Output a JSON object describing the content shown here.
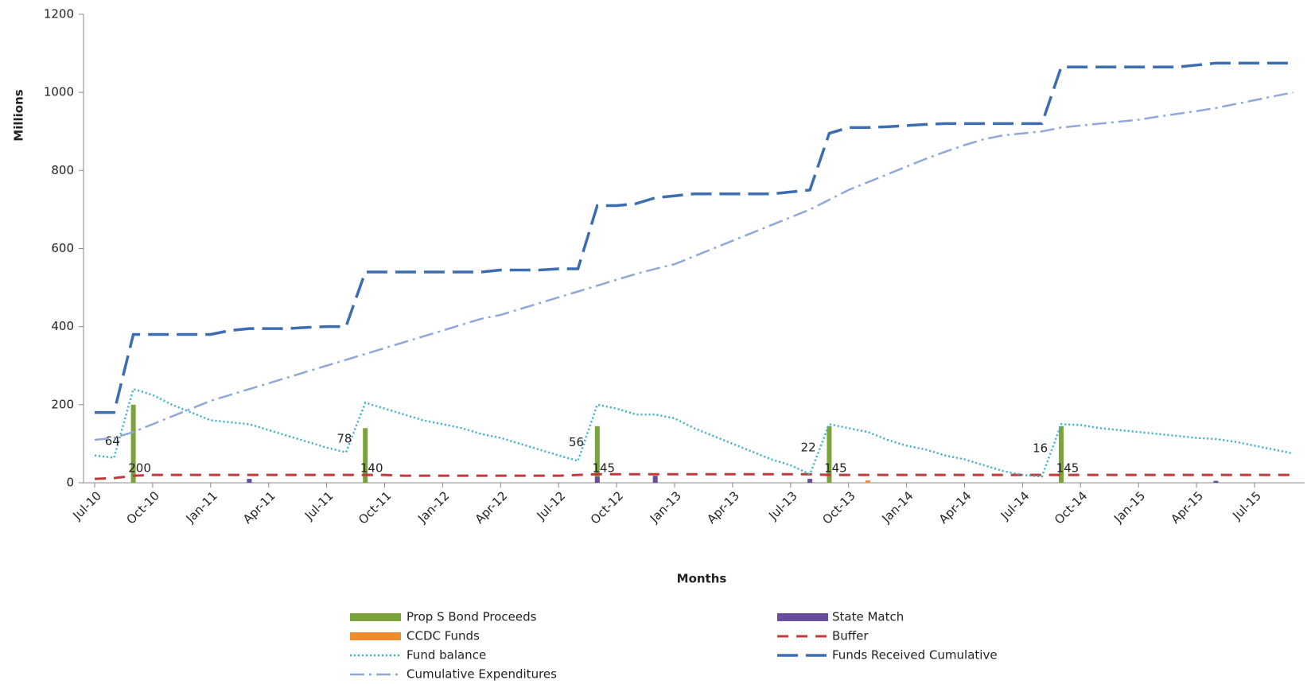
{
  "chart_data": {
    "type": "combo",
    "y_label": "Millions",
    "x_label": "Months",
    "ylim": [
      0,
      1200
    ],
    "yticks": [
      0,
      200,
      400,
      600,
      800,
      1000,
      1200
    ],
    "categories": [
      "Jul-10",
      null,
      null,
      "Oct-10",
      null,
      null,
      "Jan-11",
      null,
      null,
      "Apr-11",
      null,
      null,
      "Jul-11",
      null,
      null,
      "Oct-11",
      null,
      null,
      "Jan-12",
      null,
      null,
      "Apr-12",
      null,
      null,
      "Jul-12",
      null,
      null,
      "Oct-12",
      null,
      null,
      "Jan-13",
      null,
      null,
      "Apr-13",
      null,
      null,
      "Jul-13",
      null,
      null,
      "Oct-13",
      null,
      null,
      "Jan-14",
      null,
      null,
      "Apr-14",
      null,
      null,
      "Jul-14",
      null,
      null,
      "Oct-14",
      null,
      null,
      "Jan-15",
      null,
      null,
      "Apr-15",
      null,
      null,
      "Jul-15",
      null,
      null
    ],
    "series": [
      {
        "name": "Prop S Bond Proceeds",
        "kind": "bar",
        "color": "#7aa33c",
        "values": [
          null,
          null,
          200,
          null,
          null,
          null,
          null,
          null,
          null,
          null,
          null,
          null,
          null,
          null,
          140,
          null,
          null,
          null,
          null,
          null,
          null,
          null,
          null,
          null,
          null,
          null,
          145,
          null,
          null,
          null,
          null,
          null,
          null,
          null,
          null,
          null,
          null,
          null,
          145,
          null,
          null,
          null,
          null,
          null,
          null,
          null,
          null,
          null,
          null,
          null,
          145,
          null,
          null,
          null,
          null,
          null,
          null,
          null,
          null,
          null,
          null,
          null,
          null
        ]
      },
      {
        "name": "State Match",
        "kind": "bar",
        "color": "#6a4c9c",
        "values": [
          null,
          null,
          null,
          null,
          null,
          null,
          null,
          null,
          10,
          null,
          null,
          null,
          null,
          null,
          null,
          null,
          null,
          null,
          null,
          null,
          null,
          null,
          null,
          null,
          null,
          null,
          15,
          null,
          null,
          18,
          null,
          null,
          null,
          null,
          null,
          null,
          null,
          10,
          null,
          null,
          null,
          null,
          null,
          null,
          null,
          null,
          null,
          null,
          null,
          null,
          null,
          null,
          null,
          null,
          null,
          null,
          null,
          null,
          5,
          null,
          null,
          null,
          null
        ]
      },
      {
        "name": "CCDC Funds",
        "kind": "bar",
        "color": "#f08a2c",
        "values": [
          null,
          null,
          null,
          null,
          null,
          null,
          null,
          null,
          null,
          null,
          null,
          null,
          null,
          null,
          null,
          null,
          null,
          null,
          null,
          null,
          null,
          null,
          null,
          null,
          null,
          null,
          null,
          null,
          null,
          null,
          null,
          null,
          null,
          null,
          null,
          null,
          null,
          null,
          null,
          null,
          6,
          null,
          null,
          null,
          null,
          null,
          null,
          null,
          null,
          null,
          null,
          null,
          null,
          null,
          null,
          null,
          null,
          null,
          null,
          null,
          null,
          null,
          null
        ]
      },
      {
        "name": "Buffer",
        "kind": "line",
        "dash": "14 10",
        "width": 3,
        "color": "#c0393b",
        "values": [
          10,
          12,
          18,
          20,
          20,
          20,
          20,
          20,
          20,
          20,
          20,
          20,
          20,
          20,
          20,
          20,
          18,
          18,
          18,
          18,
          18,
          18,
          18,
          18,
          18,
          20,
          22,
          22,
          22,
          22,
          22,
          22,
          22,
          22,
          22,
          22,
          22,
          22,
          20,
          20,
          20,
          20,
          20,
          20,
          20,
          20,
          20,
          20,
          20,
          20,
          20,
          20,
          20,
          20,
          20,
          20,
          20,
          20,
          20,
          20,
          20,
          20,
          20
        ]
      },
      {
        "name": "Fund balance",
        "kind": "line",
        "dash": "2 3",
        "width": 2.5,
        "color": "#3bb0c9",
        "values": [
          70,
          64,
          240,
          225,
          200,
          180,
          160,
          155,
          150,
          135,
          120,
          105,
          90,
          78,
          205,
          190,
          175,
          160,
          150,
          140,
          125,
          115,
          100,
          85,
          70,
          56,
          200,
          190,
          175,
          175,
          165,
          140,
          120,
          100,
          80,
          60,
          45,
          22,
          150,
          140,
          130,
          110,
          95,
          85,
          70,
          60,
          45,
          30,
          20,
          16,
          150,
          148,
          140,
          135,
          130,
          125,
          120,
          115,
          112,
          105,
          95,
          85,
          75
        ],
        "value_labels": [
          null,
          "64",
          null,
          null,
          null,
          null,
          null,
          null,
          null,
          null,
          null,
          null,
          null,
          "78",
          null,
          null,
          null,
          null,
          null,
          null,
          null,
          null,
          null,
          null,
          null,
          "56",
          null,
          null,
          null,
          null,
          null,
          null,
          null,
          null,
          null,
          null,
          null,
          "22",
          null,
          null,
          null,
          null,
          null,
          null,
          null,
          null,
          null,
          null,
          null,
          "16",
          null,
          null,
          null,
          null,
          null,
          null,
          null,
          null,
          null,
          null,
          null,
          null,
          null
        ]
      },
      {
        "name": "Funds Received Cumulative",
        "kind": "line",
        "dash": "26 10",
        "width": 3.5,
        "color": "#3c6db0",
        "values": [
          180,
          180,
          380,
          380,
          380,
          380,
          380,
          390,
          395,
          395,
          395,
          398,
          400,
          400,
          540,
          540,
          540,
          540,
          540,
          540,
          540,
          545,
          545,
          545,
          548,
          548,
          710,
          710,
          715,
          730,
          735,
          740,
          740,
          740,
          740,
          740,
          745,
          750,
          895,
          910,
          910,
          912,
          915,
          918,
          920,
          920,
          920,
          920,
          920,
          920,
          1065,
          1065,
          1065,
          1065,
          1065,
          1065,
          1065,
          1070,
          1075,
          1075,
          1075,
          1075,
          1075
        ]
      },
      {
        "name": "Cumulative Expenditures",
        "kind": "line",
        "dash": "18 6 3 6",
        "width": 2.5,
        "color": "#8fa8d8",
        "values": [
          110,
          115,
          130,
          150,
          170,
          190,
          210,
          225,
          240,
          255,
          270,
          285,
          300,
          315,
          330,
          345,
          360,
          375,
          390,
          405,
          420,
          430,
          445,
          460,
          475,
          490,
          505,
          520,
          535,
          548,
          560,
          580,
          600,
          620,
          640,
          660,
          680,
          700,
          725,
          750,
          770,
          790,
          810,
          830,
          848,
          865,
          880,
          890,
          895,
          900,
          910,
          915,
          920,
          925,
          930,
          938,
          945,
          952,
          960,
          970,
          980,
          990,
          1000
        ]
      }
    ]
  }
}
